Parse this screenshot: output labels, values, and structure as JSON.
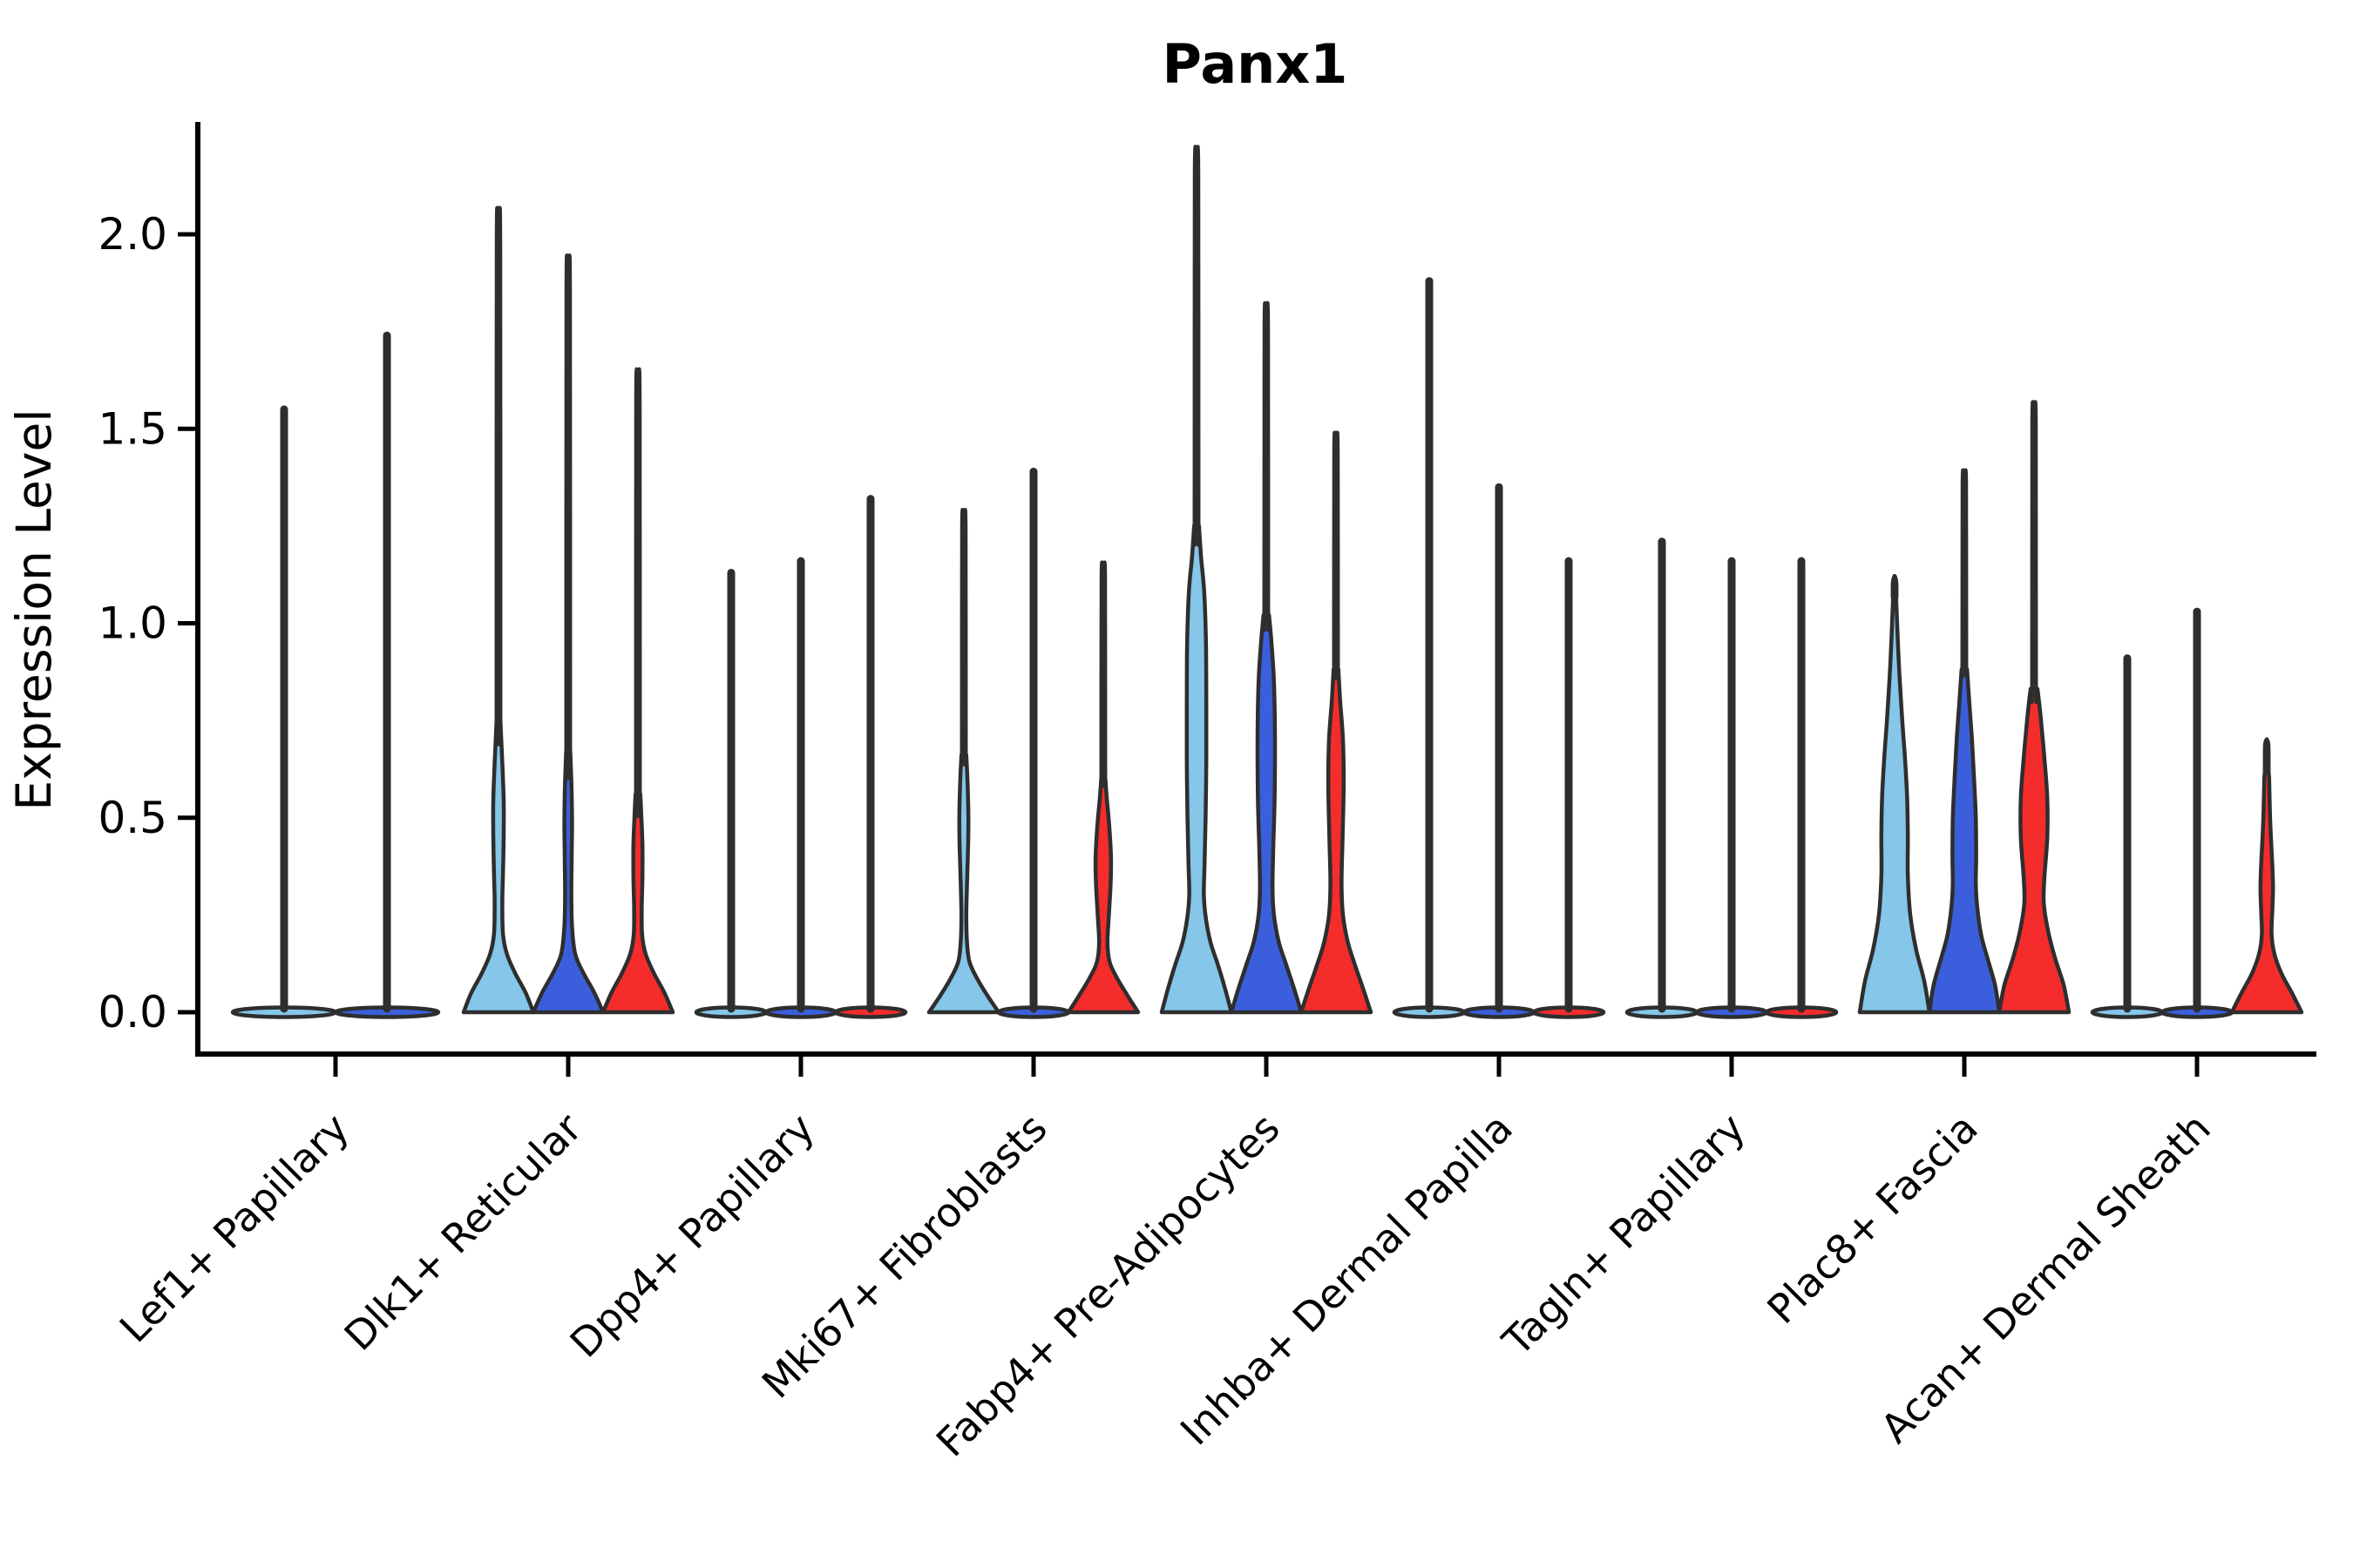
{
  "title": "Panx1",
  "y_axis": {
    "label": "Expression Level",
    "tick_labels": [
      "2.0",
      "1.5",
      "1.0",
      "0.5",
      "0.0"
    ],
    "tick_values": [
      2.0,
      1.5,
      1.0,
      0.5,
      0.0
    ]
  },
  "colors": {
    "series": [
      "#85C6E9",
      "#3B5FDC",
      "#F52C2C"
    ],
    "outline": "#2E2E2E",
    "axis": "#000000"
  },
  "chart_data": {
    "type": "violin",
    "title": "Panx1",
    "xlabel": "",
    "ylabel": "Expression Level",
    "ylim": [
      -0.13,
      2.35
    ],
    "yticks": [
      0.0,
      0.5,
      1.0,
      1.5,
      2.0
    ],
    "grid": false,
    "legend": "none",
    "n_series": 3,
    "groups": [
      {
        "label": "Lef1+ Papillary",
        "violins": [
          {
            "series": 0,
            "flat": true,
            "max": 1.55
          },
          {
            "series": 1,
            "flat": true,
            "max": 1.74
          }
        ]
      },
      {
        "label": "Dlk1+ Reticular",
        "violins": [
          {
            "series": 0,
            "max": 1.99,
            "profile": [
              [
                0,
                1
              ],
              [
                0.05,
                0.78
              ],
              [
                0.1,
                0.48
              ],
              [
                0.15,
                0.24
              ],
              [
                0.2,
                0.13
              ],
              [
                0.28,
                0.11
              ],
              [
                0.36,
                0.13
              ],
              [
                0.46,
                0.15
              ],
              [
                0.54,
                0.15
              ],
              [
                0.62,
                0.12
              ],
              [
                0.7,
                0.08
              ],
              [
                0.76,
                0.05
              ]
            ]
          },
          {
            "series": 1,
            "max": 1.87,
            "profile": [
              [
                0,
                1
              ],
              [
                0.05,
                0.75
              ],
              [
                0.1,
                0.44
              ],
              [
                0.15,
                0.2
              ],
              [
                0.22,
                0.11
              ],
              [
                0.3,
                0.09
              ],
              [
                0.4,
                0.1
              ],
              [
                0.48,
                0.11
              ],
              [
                0.56,
                0.1
              ],
              [
                0.62,
                0.08
              ],
              [
                0.67,
                0.06
              ]
            ]
          },
          {
            "series": 2,
            "max": 1.59,
            "profile": [
              [
                0,
                1
              ],
              [
                0.05,
                0.76
              ],
              [
                0.1,
                0.46
              ],
              [
                0.15,
                0.22
              ],
              [
                0.2,
                0.12
              ],
              [
                0.27,
                0.11
              ],
              [
                0.35,
                0.13
              ],
              [
                0.43,
                0.13
              ],
              [
                0.5,
                0.1
              ],
              [
                0.56,
                0.07
              ]
            ]
          }
        ]
      },
      {
        "label": "Dpp4+ Papillary",
        "violins": [
          {
            "series": 0,
            "flat": true,
            "max": 1.13
          },
          {
            "series": 1,
            "flat": true,
            "max": 1.16
          },
          {
            "series": 2,
            "flat": true,
            "max": 1.32
          }
        ]
      },
      {
        "label": "Mki67+ Fibroblasts",
        "violins": [
          {
            "series": 0,
            "max": 1.26,
            "profile": [
              [
                0,
                1
              ],
              [
                0.045,
                0.66
              ],
              [
                0.09,
                0.36
              ],
              [
                0.13,
                0.16
              ],
              [
                0.18,
                0.09
              ],
              [
                0.25,
                0.07
              ],
              [
                0.33,
                0.09
              ],
              [
                0.42,
                0.12
              ],
              [
                0.5,
                0.13
              ],
              [
                0.58,
                0.11
              ],
              [
                0.66,
                0.07
              ]
            ]
          },
          {
            "series": 1,
            "flat": true,
            "max": 1.39
          },
          {
            "series": 2,
            "max": 1.13,
            "profile": [
              [
                0,
                1
              ],
              [
                0.045,
                0.68
              ],
              [
                0.09,
                0.38
              ],
              [
                0.13,
                0.18
              ],
              [
                0.18,
                0.12
              ],
              [
                0.25,
                0.16
              ],
              [
                0.33,
                0.21
              ],
              [
                0.4,
                0.22
              ],
              [
                0.48,
                0.17
              ],
              [
                0.55,
                0.1
              ],
              [
                0.6,
                0.06
              ]
            ]
          }
        ]
      },
      {
        "label": "Fabp4+ Pre-Adipocytes",
        "violins": [
          {
            "series": 0,
            "max": 2.17,
            "profile": [
              [
                0,
                1
              ],
              [
                0.06,
                0.82
              ],
              [
                0.12,
                0.62
              ],
              [
                0.18,
                0.4
              ],
              [
                0.24,
                0.27
              ],
              [
                0.3,
                0.21
              ],
              [
                0.38,
                0.23
              ],
              [
                0.5,
                0.26
              ],
              [
                0.65,
                0.28
              ],
              [
                0.8,
                0.28
              ],
              [
                0.95,
                0.27
              ],
              [
                1.08,
                0.22
              ],
              [
                1.17,
                0.13
              ],
              [
                1.25,
                0.07
              ]
            ]
          },
          {
            "series": 1,
            "max": 1.78,
            "profile": [
              [
                0,
                1
              ],
              [
                0.06,
                0.8
              ],
              [
                0.12,
                0.58
              ],
              [
                0.18,
                0.36
              ],
              [
                0.25,
                0.22
              ],
              [
                0.32,
                0.18
              ],
              [
                0.42,
                0.2
              ],
              [
                0.55,
                0.24
              ],
              [
                0.7,
                0.25
              ],
              [
                0.85,
                0.22
              ],
              [
                0.95,
                0.15
              ],
              [
                1.02,
                0.08
              ]
            ]
          },
          {
            "series": 2,
            "max": 1.46,
            "profile": [
              [
                0,
                1
              ],
              [
                0.06,
                0.78
              ],
              [
                0.12,
                0.55
              ],
              [
                0.18,
                0.34
              ],
              [
                0.25,
                0.2
              ],
              [
                0.33,
                0.16
              ],
              [
                0.45,
                0.19
              ],
              [
                0.58,
                0.22
              ],
              [
                0.7,
                0.2
              ],
              [
                0.8,
                0.12
              ],
              [
                0.88,
                0.07
              ]
            ]
          }
        ]
      },
      {
        "label": "Inhba+ Dermal Papilla",
        "violins": [
          {
            "series": 0,
            "flat": true,
            "max": 1.88
          },
          {
            "series": 1,
            "flat": true,
            "max": 1.35
          },
          {
            "series": 2,
            "flat": true,
            "max": 1.16
          }
        ]
      },
      {
        "label": "Tagln+ Papillary",
        "violins": [
          {
            "series": 0,
            "flat": true,
            "max": 1.21
          },
          {
            "series": 1,
            "flat": true,
            "max": 1.16
          },
          {
            "series": 2,
            "flat": true,
            "max": 1.16
          }
        ]
      },
      {
        "label": "Plac8+ Fascia",
        "violins": [
          {
            "series": 0,
            "max": 1.12,
            "profile": [
              [
                0,
                1
              ],
              [
                0.08,
                0.85
              ],
              [
                0.16,
                0.62
              ],
              [
                0.25,
                0.45
              ],
              [
                0.35,
                0.38
              ],
              [
                0.45,
                0.38
              ],
              [
                0.55,
                0.36
              ],
              [
                0.65,
                0.3
              ],
              [
                0.75,
                0.22
              ],
              [
                0.9,
                0.12
              ],
              [
                1.05,
                0.05
              ]
            ]
          },
          {
            "series": 1,
            "max": 1.37,
            "profile": [
              [
                0,
                1
              ],
              [
                0.07,
                0.88
              ],
              [
                0.14,
                0.66
              ],
              [
                0.2,
                0.48
              ],
              [
                0.27,
                0.37
              ],
              [
                0.33,
                0.33
              ],
              [
                0.4,
                0.34
              ],
              [
                0.5,
                0.33
              ],
              [
                0.6,
                0.28
              ],
              [
                0.7,
                0.22
              ],
              [
                0.8,
                0.14
              ],
              [
                0.88,
                0.08
              ]
            ]
          },
          {
            "series": 2,
            "max": 1.53,
            "profile": [
              [
                0,
                1
              ],
              [
                0.07,
                0.85
              ],
              [
                0.14,
                0.6
              ],
              [
                0.21,
                0.4
              ],
              [
                0.28,
                0.28
              ],
              [
                0.35,
                0.3
              ],
              [
                0.45,
                0.38
              ],
              [
                0.55,
                0.38
              ],
              [
                0.65,
                0.3
              ],
              [
                0.75,
                0.2
              ],
              [
                0.83,
                0.1
              ]
            ]
          }
        ]
      },
      {
        "label": "Acan+ Dermal Sheath",
        "violins": [
          {
            "series": 0,
            "flat": true,
            "max": 0.91
          },
          {
            "series": 1,
            "flat": true,
            "max": 1.03
          },
          {
            "series": 2,
            "max": 0.7,
            "profile": [
              [
                0,
                1
              ],
              [
                0.05,
                0.72
              ],
              [
                0.1,
                0.42
              ],
              [
                0.15,
                0.22
              ],
              [
                0.2,
                0.14
              ],
              [
                0.26,
                0.16
              ],
              [
                0.32,
                0.18
              ],
              [
                0.38,
                0.16
              ],
              [
                0.45,
                0.12
              ],
              [
                0.52,
                0.09
              ],
              [
                0.6,
                0.07
              ]
            ]
          }
        ]
      }
    ]
  }
}
